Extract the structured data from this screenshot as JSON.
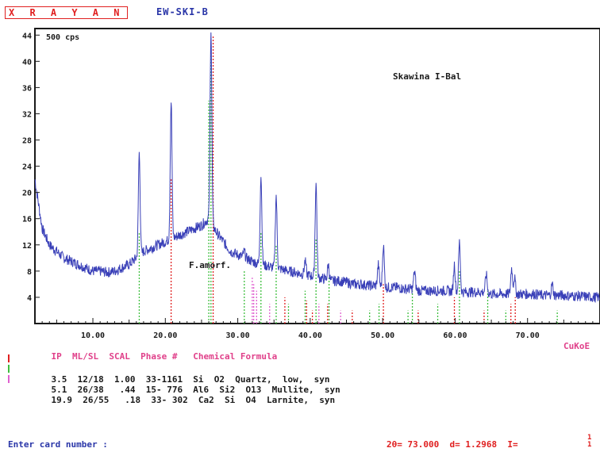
{
  "header": {
    "brand": "X R A Y A N",
    "file_name": "EW-SKI-B"
  },
  "chart_data": {
    "type": "line",
    "title": "",
    "sample_label": "Skawina I-Bal",
    "intensity_unit": "500 cps",
    "annotation": "F.amorf.",
    "xlabel": "",
    "ylabel": "",
    "xlim": [
      2,
      80
    ],
    "ylim": [
      0,
      45
    ],
    "x_ticks": [
      "10.00",
      "20.00",
      "30.00",
      "40.00",
      "50.00",
      "60.00",
      "70.00"
    ],
    "x_tick_values": [
      10,
      20,
      30,
      40,
      50,
      60,
      70
    ],
    "y_ticks": [
      "4",
      "8",
      "12",
      "16",
      "20",
      "24",
      "28",
      "32",
      "36",
      "40",
      "44"
    ],
    "y_tick_values": [
      4,
      8,
      12,
      16,
      20,
      24,
      28,
      32,
      36,
      40,
      44
    ],
    "grid": false,
    "series": [
      {
        "color": "#3a40b8",
        "x": [
          2,
          3,
          4,
          5,
          6,
          7,
          8,
          9,
          10,
          11,
          12,
          13,
          14,
          15,
          16,
          17,
          18,
          19,
          20,
          21,
          22,
          23,
          24,
          25,
          26,
          27,
          28,
          29,
          30,
          31,
          32,
          33,
          34,
          35,
          36,
          37,
          38,
          39,
          40,
          41,
          42,
          43,
          44,
          45,
          46,
          47,
          48,
          49,
          50,
          51,
          52,
          53,
          54,
          55,
          56,
          57,
          58,
          59,
          60,
          61,
          62,
          63,
          64,
          65,
          66,
          67,
          68,
          69,
          70,
          71,
          72,
          73,
          74,
          75,
          76,
          77,
          78,
          79,
          80
        ],
        "y": [
          22.0,
          14.5,
          12.0,
          11.0,
          10.0,
          9.5,
          9.0,
          8.5,
          8.0,
          8.0,
          7.8,
          8.0,
          8.5,
          9.0,
          10.0,
          11.0,
          11.5,
          12.0,
          12.5,
          13.0,
          13.5,
          14.0,
          14.5,
          15.0,
          16.0,
          14.0,
          12.5,
          11.0,
          10.5,
          10.0,
          9.5,
          9.0,
          8.8,
          8.5,
          8.3,
          8.0,
          7.8,
          7.5,
          7.3,
          7.0,
          6.8,
          6.5,
          6.5,
          6.3,
          6.0,
          6.0,
          5.8,
          5.8,
          5.5,
          5.5,
          5.5,
          5.3,
          5.3,
          5.0,
          5.0,
          5.0,
          5.0,
          5.0,
          4.8,
          4.8,
          4.8,
          4.8,
          4.8,
          4.5,
          4.5,
          4.5,
          4.5,
          4.5,
          4.5,
          4.5,
          4.3,
          4.3,
          4.3,
          4.3,
          4.2,
          4.2,
          4.1,
          4.0,
          4.0
        ]
      }
    ],
    "peaks": [
      {
        "x": 16.4,
        "y": 26.0
      },
      {
        "x": 20.8,
        "y": 34.0
      },
      {
        "x": 26.3,
        "y": 45.0
      },
      {
        "x": 30.9,
        "y": 11.0
      },
      {
        "x": 33.2,
        "y": 22.5
      },
      {
        "x": 35.3,
        "y": 19.5
      },
      {
        "x": 39.3,
        "y": 9.5
      },
      {
        "x": 40.8,
        "y": 21.5
      },
      {
        "x": 42.5,
        "y": 9.0
      },
      {
        "x": 49.4,
        "y": 9.0
      },
      {
        "x": 50.1,
        "y": 12.0
      },
      {
        "x": 54.4,
        "y": 8.0
      },
      {
        "x": 59.9,
        "y": 9.0
      },
      {
        "x": 60.6,
        "y": 12.5
      },
      {
        "x": 64.3,
        "y": 7.5
      },
      {
        "x": 67.8,
        "y": 8.5
      },
      {
        "x": 68.2,
        "y": 7.0
      },
      {
        "x": 73.4,
        "y": 6.0
      }
    ],
    "reference_lines": [
      {
        "phase": "Quartz",
        "color": "#e02020",
        "lines": [
          {
            "x": 20.8,
            "y": 22
          },
          {
            "x": 26.6,
            "y": 44
          },
          {
            "x": 36.5,
            "y": 4
          },
          {
            "x": 39.5,
            "y": 3.5
          },
          {
            "x": 40.3,
            "y": 2
          },
          {
            "x": 42.4,
            "y": 3
          },
          {
            "x": 45.8,
            "y": 2
          },
          {
            "x": 50.1,
            "y": 6
          },
          {
            "x": 54.9,
            "y": 2
          },
          {
            "x": 59.9,
            "y": 4
          },
          {
            "x": 64.0,
            "y": 2
          },
          {
            "x": 67.7,
            "y": 3
          },
          {
            "x": 68.3,
            "y": 4
          }
        ]
      },
      {
        "phase": "Mullite",
        "color": "#3fbf3f",
        "lines": [
          {
            "x": 16.4,
            "y": 14
          },
          {
            "x": 26.0,
            "y": 34
          },
          {
            "x": 26.3,
            "y": 42
          },
          {
            "x": 30.9,
            "y": 8
          },
          {
            "x": 33.2,
            "y": 14
          },
          {
            "x": 35.3,
            "y": 12
          },
          {
            "x": 37.0,
            "y": 3
          },
          {
            "x": 39.3,
            "y": 5
          },
          {
            "x": 40.8,
            "y": 13
          },
          {
            "x": 42.6,
            "y": 7
          },
          {
            "x": 48.2,
            "y": 2
          },
          {
            "x": 49.5,
            "y": 3
          },
          {
            "x": 53.5,
            "y": 2
          },
          {
            "x": 54.1,
            "y": 5
          },
          {
            "x": 57.6,
            "y": 3
          },
          {
            "x": 60.6,
            "y": 8
          },
          {
            "x": 64.5,
            "y": 5
          },
          {
            "x": 67.0,
            "y": 2
          },
          {
            "x": 74.1,
            "y": 2
          }
        ]
      },
      {
        "phase": "Larnite",
        "color": "#e060d0",
        "lines": [
          {
            "x": 32.0,
            "y": 7
          },
          {
            "x": 32.2,
            "y": 6
          },
          {
            "x": 32.6,
            "y": 5
          },
          {
            "x": 34.4,
            "y": 3
          },
          {
            "x": 41.2,
            "y": 3
          },
          {
            "x": 44.2,
            "y": 2
          }
        ]
      }
    ]
  },
  "legend": {
    "header": "IP  ML/SL  SCAL  Phase #   Chemical Formula",
    "tube": "CuKoE",
    "rows": [
      {
        "color": "#e02020",
        "text": "3.5  12/18  1.00  33-1161  Si  O2  Quartz,  low,  syn"
      },
      {
        "color": "#3fbf3f",
        "text": "5.1  26/38   .44  15- 776  Al6  Si2  O13  Mullite,  syn"
      },
      {
        "color": "#e060d0",
        "text": "19.9  26/55   .18  33- 302  Ca2  Si  O4  Larnite,  syn"
      }
    ]
  },
  "status": {
    "prompt": "Enter card number :",
    "cursor_readout": "2θ= 73.000  d= 1.2968  I=",
    "corner_tag": "1\n1"
  }
}
